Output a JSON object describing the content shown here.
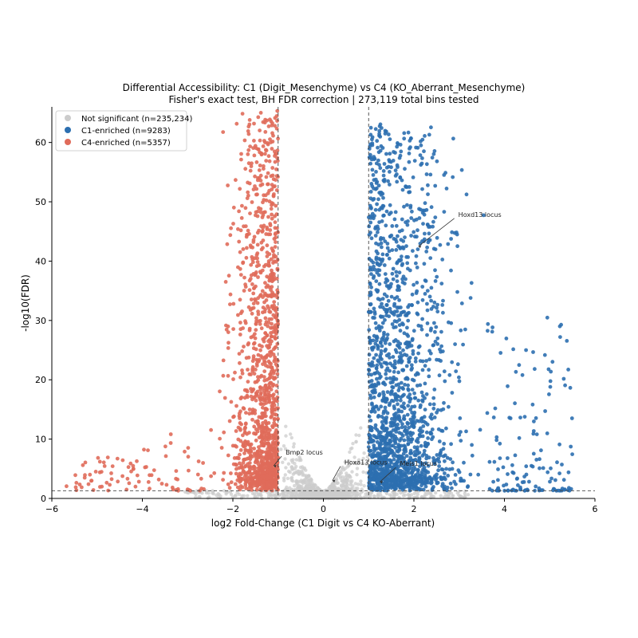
{
  "chart_data": {
    "type": "scatter",
    "title": "Differential Accessibility: C1 (Digit_Mesenchyme) vs C4 (KO_Aberrant_Mesenchyme)",
    "subtitle": "Fisher's exact test, BH FDR correction | 273,119 total bins tested",
    "xlabel": "log2 Fold-Change (C1 Digit vs C4 KO-Aberrant)",
    "ylabel": "-log10(FDR)",
    "xlim": [
      -6,
      6
    ],
    "ylim": [
      0,
      66
    ],
    "xticks": [
      -6,
      -4,
      -2,
      0,
      2,
      4,
      6
    ],
    "yticks": [
      0,
      10,
      20,
      30,
      40,
      50,
      60
    ],
    "xtick_labels": [
      "−6",
      "−4",
      "−2",
      "0",
      "2",
      "4",
      "6"
    ],
    "ytick_labels": [
      "0",
      "10",
      "20",
      "30",
      "40",
      "50",
      "60"
    ],
    "thresholds": {
      "log2fc": [
        -1,
        1
      ],
      "neg_log10_fdr": 1.3
    },
    "legend_position": "upper-left",
    "series": [
      {
        "name": "Not significant (n=235,234)",
        "color": "#cccccc",
        "count": 235234
      },
      {
        "name": "C1-enriched (n=9283)",
        "color": "#2c6fb0",
        "count": 9283
      },
      {
        "name": "C4-enriched (n=5357)",
        "color": "#e06b5a",
        "count": 5357
      }
    ],
    "annotations": [
      {
        "label": "Hoxd13 locus",
        "x": 2.1,
        "y": 42.5
      },
      {
        "label": "Bmp2 locus",
        "x": -1.1,
        "y": 5.5
      },
      {
        "label": "Hoxa13 locus",
        "x": 0.2,
        "y": 3.0
      },
      {
        "label": "Meis1 locus",
        "x": 1.25,
        "y": 2.8
      }
    ]
  }
}
